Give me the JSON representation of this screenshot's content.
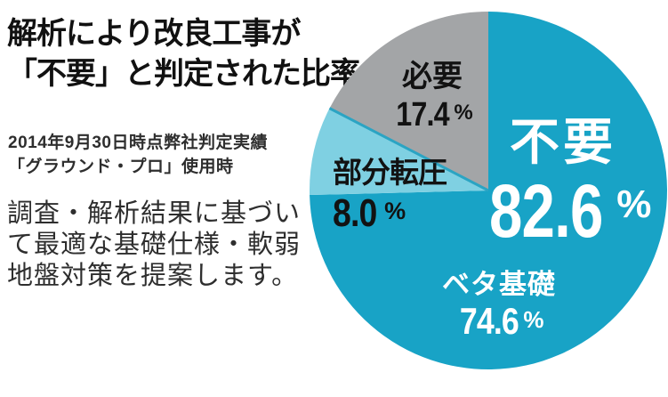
{
  "header": {
    "title_line1": "解析により改良工事が",
    "title_line2": "「不要」と判定された比率"
  },
  "note": {
    "line1": "2014年9月30日時点弊社判定実績",
    "line2": "「グラウンド・プロ」使用時"
  },
  "description": {
    "line1": "調査・解析結果に基づい",
    "line2": "て最適な基礎仕様・軟弱",
    "line3": "地盤対策を提案します。"
  },
  "chart_data": {
    "type": "pie",
    "title": "解析により改良工事が「不要」と判定された比率",
    "start": "12-oclock, clockwise",
    "slices": [
      {
        "id": "mat-foundation",
        "label": "ベタ基礎",
        "value": 74.6,
        "color": "#18a3c6"
      },
      {
        "id": "partial-compaction",
        "label": "部分転圧",
        "value": 8.0,
        "color": "#7fd0e2"
      },
      {
        "id": "necessary",
        "label": "必要",
        "value": 17.4,
        "color": "#a3a5a7"
      }
    ],
    "divider_line": {
      "at_cumulative_percent": 82.6,
      "color": "#2ba4c3",
      "width": 3
    },
    "labels": {
      "necessary": {
        "name": "必要",
        "value": "17.4",
        "unit": "%"
      },
      "partial": {
        "name": "部分転圧",
        "value": "8.0",
        "unit": "%"
      },
      "unnecessary": {
        "name": "不要",
        "value": "82.6",
        "unit": "%"
      },
      "mat_foundation": {
        "name": "ベタ基礎",
        "value": "74.6",
        "unit": "%"
      }
    },
    "colors": {
      "unnecessary_cyan": "#18a3c6",
      "partial_light_blue": "#7fd0e2",
      "necessary_gray": "#a3a5a7",
      "label_dark": "#121212",
      "label_light": "#ffffff"
    }
  }
}
